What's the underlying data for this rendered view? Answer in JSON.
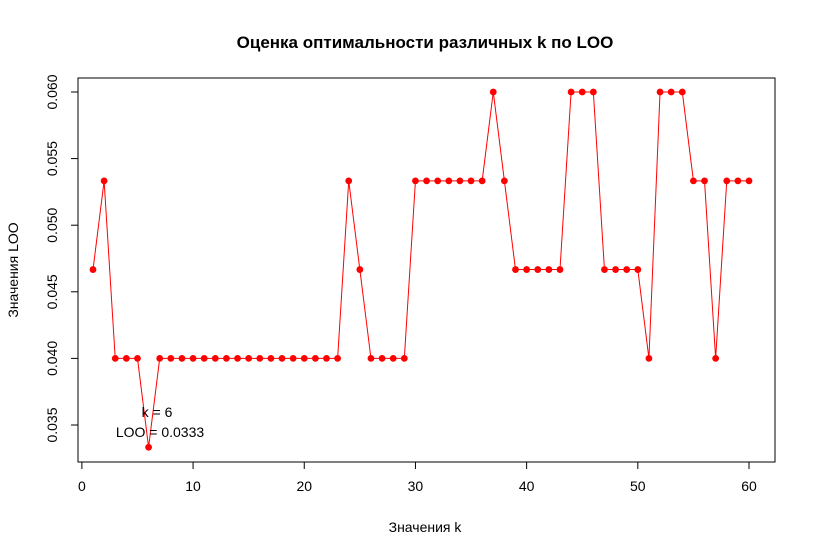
{
  "chart_data": {
    "type": "line",
    "title": "Оценка оптимальности различных k по LOO",
    "xlabel": "Значения k",
    "ylabel": "Значения LOO",
    "xlim": [
      0,
      62
    ],
    "ylim": [
      0.0325,
      0.0612
    ],
    "x_ticks": [
      0,
      10,
      20,
      30,
      40,
      50,
      60
    ],
    "y_ticks": [
      0.035,
      0.04,
      0.045,
      0.05,
      0.055,
      0.06
    ],
    "x_tick_labels": [
      "0",
      "10",
      "20",
      "30",
      "40",
      "50",
      "60"
    ],
    "y_tick_labels": [
      "0.035",
      "0.040",
      "0.045",
      "0.050",
      "0.055",
      "0.060"
    ],
    "grid": false,
    "series": [
      {
        "color": "#ff0000",
        "x": [
          1,
          2,
          3,
          4,
          5,
          6,
          7,
          8,
          9,
          10,
          11,
          12,
          13,
          14,
          15,
          16,
          17,
          18,
          19,
          20,
          21,
          22,
          23,
          24,
          25,
          26,
          27,
          28,
          29,
          30,
          31,
          32,
          33,
          34,
          35,
          36,
          37,
          38,
          39,
          40,
          41,
          42,
          43,
          44,
          45,
          46,
          47,
          48,
          49,
          50,
          51,
          52,
          53,
          54,
          55,
          56,
          57,
          58,
          59,
          60
        ],
        "values": [
          0.04667,
          0.05333,
          0.04,
          0.04,
          0.04,
          0.03333,
          0.04,
          0.04,
          0.04,
          0.04,
          0.04,
          0.04,
          0.04,
          0.04,
          0.04,
          0.04,
          0.04,
          0.04,
          0.04,
          0.04,
          0.04,
          0.04,
          0.04,
          0.05333,
          0.04667,
          0.04,
          0.04,
          0.04,
          0.04,
          0.05333,
          0.05333,
          0.05333,
          0.05333,
          0.05333,
          0.05333,
          0.05333,
          0.06,
          0.05333,
          0.04667,
          0.04667,
          0.04667,
          0.04667,
          0.04667,
          0.06,
          0.06,
          0.06,
          0.04667,
          0.04667,
          0.04667,
          0.04667,
          0.04,
          0.06,
          0.06,
          0.06,
          0.05333,
          0.05333,
          0.04,
          0.05333,
          0.05333,
          0.05333
        ]
      }
    ],
    "annotation": {
      "line1": "k = 6",
      "line2": "LOO = 0.0333",
      "x": 6,
      "y": 0.0333
    }
  }
}
